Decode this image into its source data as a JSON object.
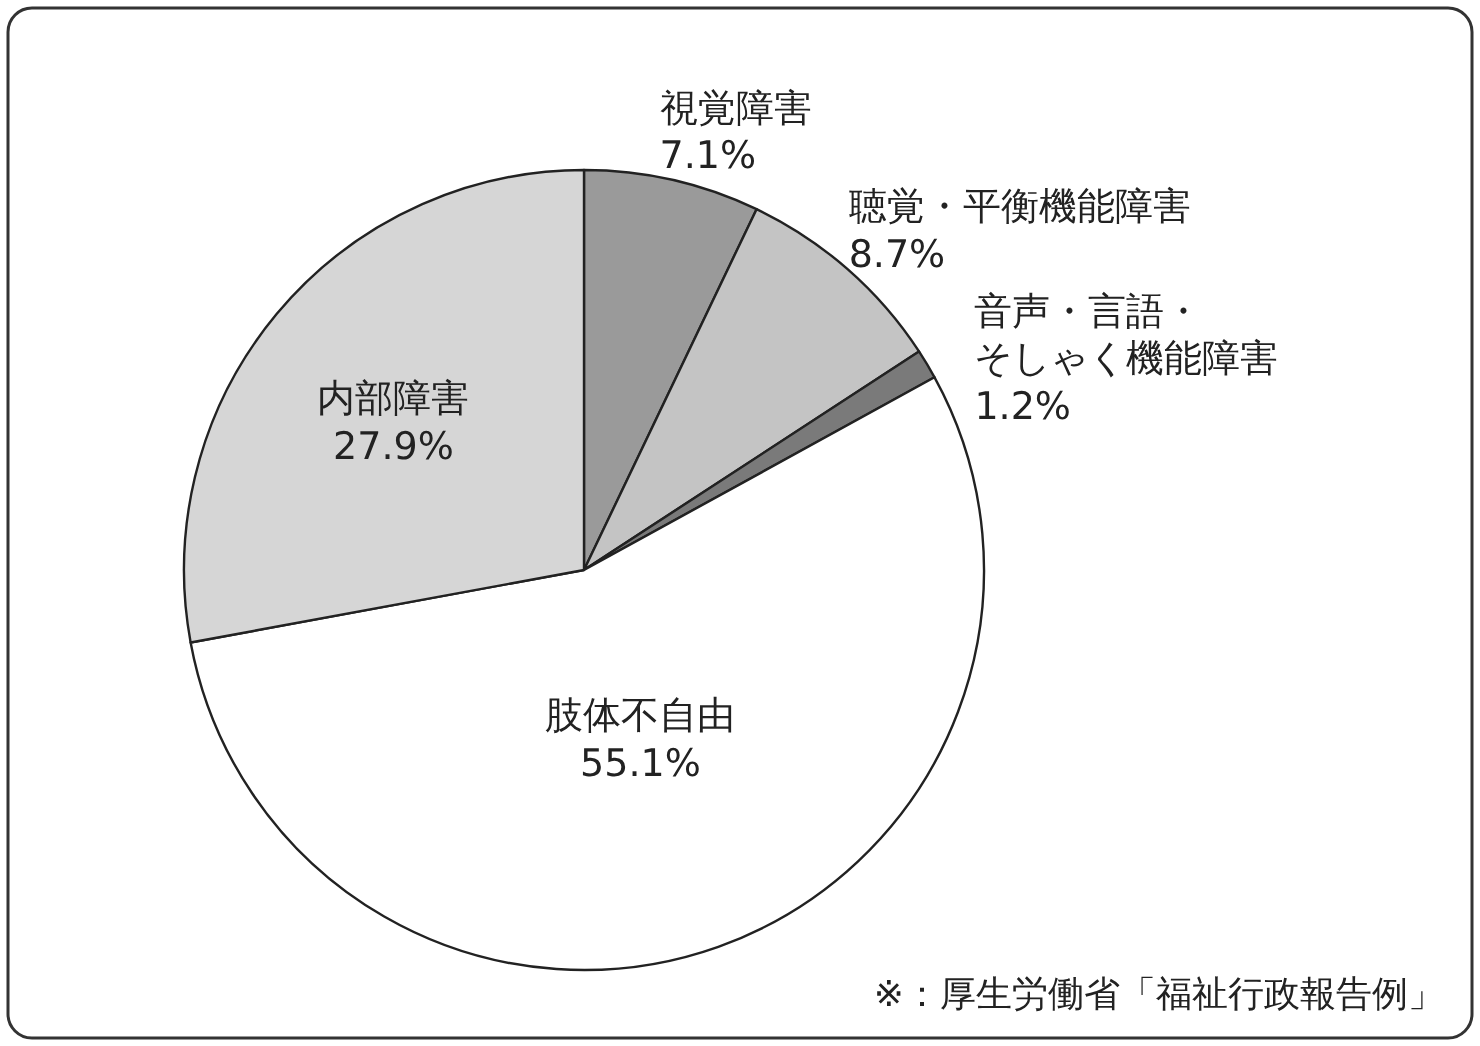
{
  "chart_data": {
    "type": "pie",
    "categories": [
      "視覚障害",
      "聴覚・平衡機能障害",
      "音声・言語・そしゃく機能障害",
      "肢体不自由",
      "内部障害"
    ],
    "values": [
      7.1,
      8.7,
      1.2,
      55.1,
      27.9
    ],
    "colors": [
      "#9a9a9a",
      "#c4c4c4",
      "#7a7a7a",
      "#ffffff",
      "#d6d6d6"
    ],
    "value_labels": [
      "7.1%",
      "8.7%",
      "1.2%",
      "55.1%",
      "27.9%"
    ],
    "annotations": [
      "※：厚生労働省「福祉行政報告例」"
    ]
  }
}
